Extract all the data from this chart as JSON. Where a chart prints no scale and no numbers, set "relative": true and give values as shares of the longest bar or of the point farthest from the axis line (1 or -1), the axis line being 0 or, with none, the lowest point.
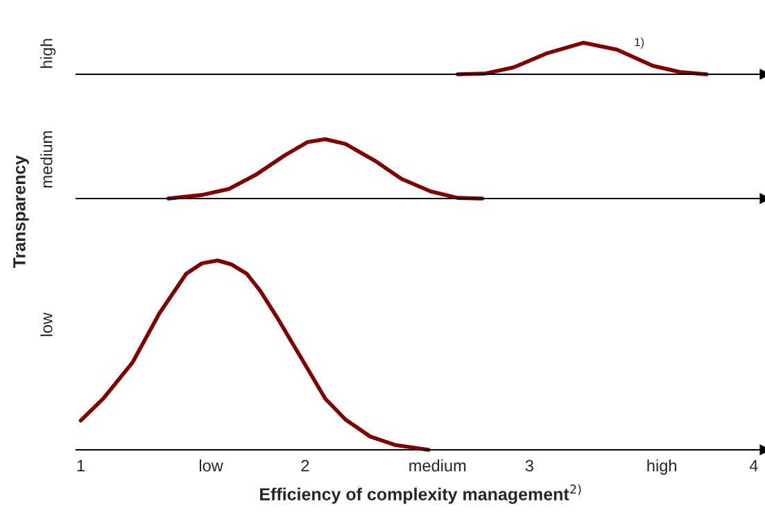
{
  "chart_data": [
    {
      "type": "line",
      "relative": true,
      "ylabel": "high",
      "xlim": [
        0.98,
        4.05
      ],
      "tick_labels": false,
      "annotations": [
        "1)"
      ],
      "series": [
        {
          "color": "#800000",
          "x": [
            2.68,
            2.8,
            2.93,
            3.08,
            3.24,
            3.39,
            3.55,
            3.67,
            3.79
          ],
          "values": [
            0,
            0.02,
            0.22,
            0.67,
            1,
            0.78,
            0.27,
            0.07,
            0
          ]
        }
      ]
    },
    {
      "type": "line",
      "relative": true,
      "ylabel": "medium",
      "xlim": [
        0.98,
        4.05
      ],
      "tick_labels": false,
      "annotations": [
        "Transparency"
      ],
      "series": [
        {
          "color": "#800000",
          "x": [
            1.39,
            1.54,
            1.66,
            1.78,
            1.91,
            2.01,
            2.09,
            2.18,
            2.31,
            2.43,
            2.56,
            2.68,
            2.79
          ],
          "values": [
            0,
            0.06,
            0.16,
            0.4,
            0.73,
            0.95,
            1,
            0.92,
            0.64,
            0.33,
            0.12,
            0.01,
            0
          ]
        }
      ]
    },
    {
      "type": "line",
      "relative": true,
      "ylabel": "low",
      "xlabel": "Efficiency of complexity management$^{2)}$",
      "xlim": [
        0.98,
        4.05
      ],
      "tick_labels": "x",
      "xticks": [
        1,
        {
          "value": 1.58,
          "label": "low"
        },
        2,
        {
          "value": 2.59,
          "label": "medium"
        },
        3,
        {
          "value": 3.59,
          "label": "high"
        },
        4
      ],
      "series": [
        {
          "color": "#800000",
          "x": [
            1.0,
            1.1,
            1.23,
            1.35,
            1.47,
            1.54,
            1.61,
            1.67,
            1.74,
            1.8,
            1.88,
            1.97,
            2.09,
            2.18,
            2.29,
            2.4,
            2.55
          ],
          "values": [
            0.155,
            0.27,
            0.46,
            0.72,
            0.93,
            0.985,
            1,
            0.98,
            0.93,
            0.84,
            0.69,
            0.51,
            0.27,
            0.16,
            0.07,
            0.026,
            0
          ]
        }
      ]
    }
  ]
}
